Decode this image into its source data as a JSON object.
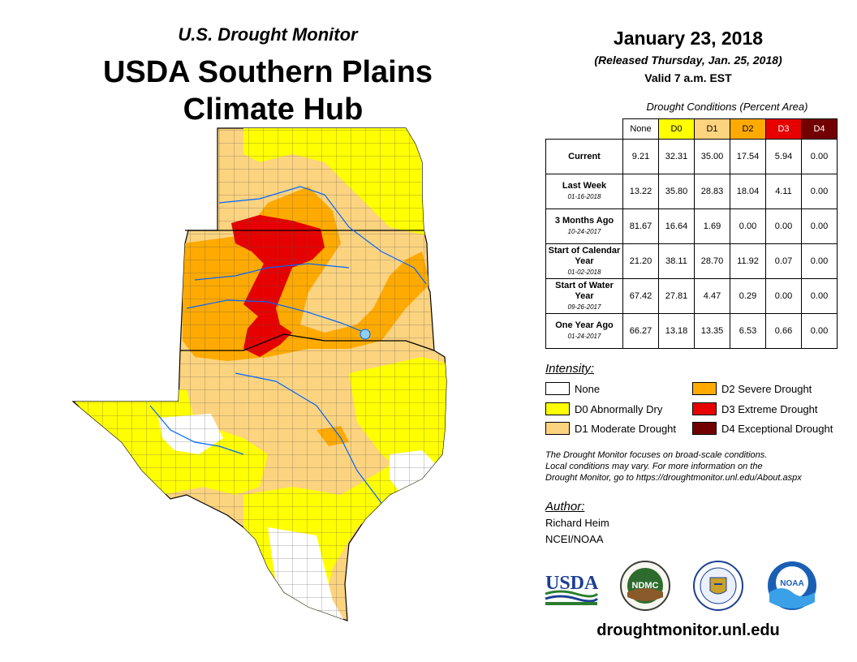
{
  "header": {
    "subtitle": "U.S. Drought Monitor",
    "title_line1": "USDA Southern Plains",
    "title_line2": "Climate Hub"
  },
  "date_block": {
    "date": "January 23, 2018",
    "released": "(Released Thursday, Jan. 25, 2018)",
    "valid": "Valid 7 a.m. EST"
  },
  "conditions_table": {
    "caption": "Drought Conditions (Percent Area)",
    "columns": [
      "None",
      "D0",
      "D1",
      "D2",
      "D3",
      "D4"
    ],
    "column_colors": [
      "#ffffff",
      "#ffff00",
      "#fcd37f",
      "#ffaa00",
      "#e60000",
      "#730000"
    ],
    "rows": [
      {
        "label": "Current",
        "date": "",
        "values": [
          "9.21",
          "32.31",
          "35.00",
          "17.54",
          "5.94",
          "0.00"
        ]
      },
      {
        "label": "Last Week",
        "date": "01-16-2018",
        "values": [
          "13.22",
          "35.80",
          "28.83",
          "18.04",
          "4.11",
          "0.00"
        ]
      },
      {
        "label": "3 Months Ago",
        "date": "10-24-2017",
        "values": [
          "81.67",
          "16.64",
          "1.69",
          "0.00",
          "0.00",
          "0.00"
        ]
      },
      {
        "label": "Start of Calendar Year",
        "date": "01-02-2018",
        "values": [
          "21.20",
          "38.11",
          "28.70",
          "11.92",
          "0.07",
          "0.00"
        ]
      },
      {
        "label": "Start of Water Year",
        "date": "09-26-2017",
        "values": [
          "67.42",
          "27.81",
          "4.47",
          "0.29",
          "0.00",
          "0.00"
        ]
      },
      {
        "label": "One Year Ago",
        "date": "01-24-2017",
        "values": [
          "66.27",
          "13.18",
          "13.35",
          "6.53",
          "0.66",
          "0.00"
        ]
      }
    ]
  },
  "legend": {
    "heading": "Intensity:",
    "items": [
      {
        "label": "None",
        "color": "#ffffff"
      },
      {
        "label": "D0 Abnormally Dry",
        "color": "#ffff00"
      },
      {
        "label": "D1 Moderate Drought",
        "color": "#fcd37f"
      },
      {
        "label": "D2 Severe Drought",
        "color": "#ffaa00"
      },
      {
        "label": "D3 Extreme Drought",
        "color": "#e60000"
      },
      {
        "label": "D4 Exceptional Drought",
        "color": "#730000"
      }
    ]
  },
  "note": {
    "line1": "The Drought Monitor focuses on broad-scale conditions.",
    "line2": "Local conditions may vary. For more information on the",
    "line3": "Drought Monitor, go to https://droughtmonitor.unl.edu/About.aspx"
  },
  "author": {
    "heading": "Author:",
    "name": "Richard Heim",
    "org": "NCEI/NOAA"
  },
  "logos": {
    "usda_text": "USDA",
    "ndmc_text": "NDMC",
    "noaa_text": "NOAA"
  },
  "website": "droughtmonitor.unl.edu"
}
